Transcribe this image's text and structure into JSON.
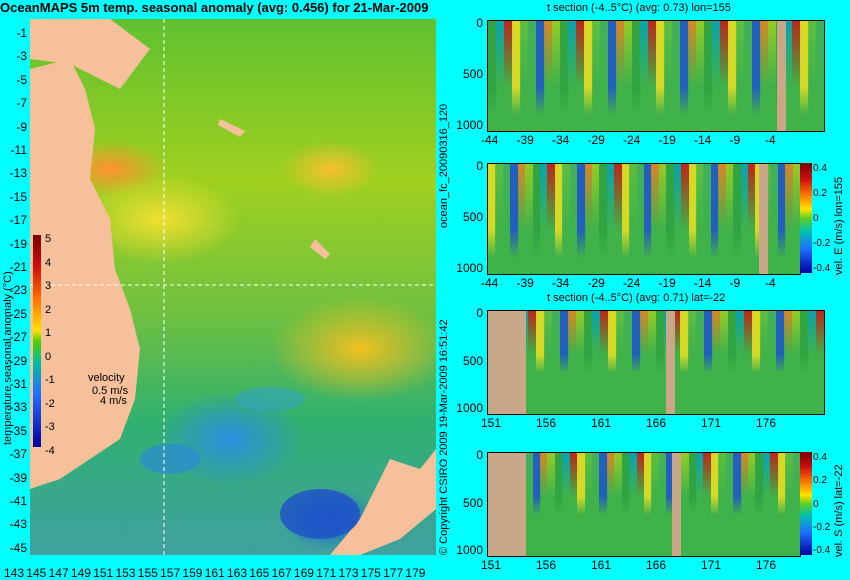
{
  "title": "OceanMAPS 5m temp. seasonal anomaly (avg: 0.456) for 21-Mar-2009",
  "map": {
    "lat_ticks": [
      "-1",
      "-3",
      "-5",
      "-7",
      "-9",
      "-11",
      "-13",
      "-15",
      "-17",
      "-19",
      "-21",
      "-23",
      "-25",
      "-27",
      "-29",
      "-31",
      "-33",
      "-35",
      "-37",
      "-39",
      "-41",
      "-43",
      "-45"
    ],
    "lon_ticks": [
      "143",
      "145",
      "147",
      "149",
      "151",
      "153",
      "155",
      "157",
      "159",
      "161",
      "163",
      "165",
      "167",
      "169",
      "171",
      "173",
      "175",
      "177",
      "179"
    ],
    "colorbar_ticks": [
      "5",
      "4",
      "3",
      "2",
      "1",
      "0",
      "-1",
      "-2",
      "-3",
      "-4"
    ],
    "colorbar_label": "temperature seasonal anomaly (°C)",
    "velocity_label": "velocity",
    "velocity_value": "0.5 m/s",
    "velocity_value2": "4 m/s"
  },
  "side_labels": {
    "run": "ocean_fc_20090316_120",
    "copyright": "© Copyright CSIRO 2009   19-Mar-2009 16:51:42"
  },
  "panels": [
    {
      "title": "t section (-4..5°C) (avg: 0.73) lon=155",
      "y_ticks": [
        "0",
        "500",
        "1000"
      ],
      "x_ticks": [
        "-44",
        "-39",
        "-34",
        "-29",
        "-24",
        "-19",
        "-14",
        "-9",
        "-4"
      ],
      "cbar_label": "",
      "cbar_ticks": []
    },
    {
      "title": "",
      "y_ticks": [
        "0",
        "500",
        "1000"
      ],
      "x_ticks": [
        "-44",
        "-39",
        "-34",
        "-29",
        "-24",
        "-19",
        "-14",
        "-9",
        "-4"
      ],
      "cbar_label": "vel. E (m/s) lon=155",
      "cbar_ticks": [
        "0.4",
        "0.2",
        "0",
        "-0.2",
        "-0.4"
      ]
    },
    {
      "title": "t section (-4..5°C) (avg: 0.71) lat=-22",
      "y_ticks": [
        "0",
        "500",
        "1000"
      ],
      "x_ticks": [
        "151",
        "156",
        "161",
        "166",
        "171",
        "176"
      ],
      "cbar_label": "",
      "cbar_ticks": []
    },
    {
      "title": "",
      "y_ticks": [
        "0",
        "500",
        "1000"
      ],
      "x_ticks": [
        "151",
        "156",
        "161",
        "166",
        "171",
        "176"
      ],
      "cbar_label": "vel. S (m/s) lat=-22",
      "cbar_ticks": [
        "0.4",
        "0.2",
        "0",
        "-0.2",
        "-0.4"
      ]
    }
  ],
  "colors": {
    "background": "#00ffff",
    "land": "#f5c09a"
  }
}
